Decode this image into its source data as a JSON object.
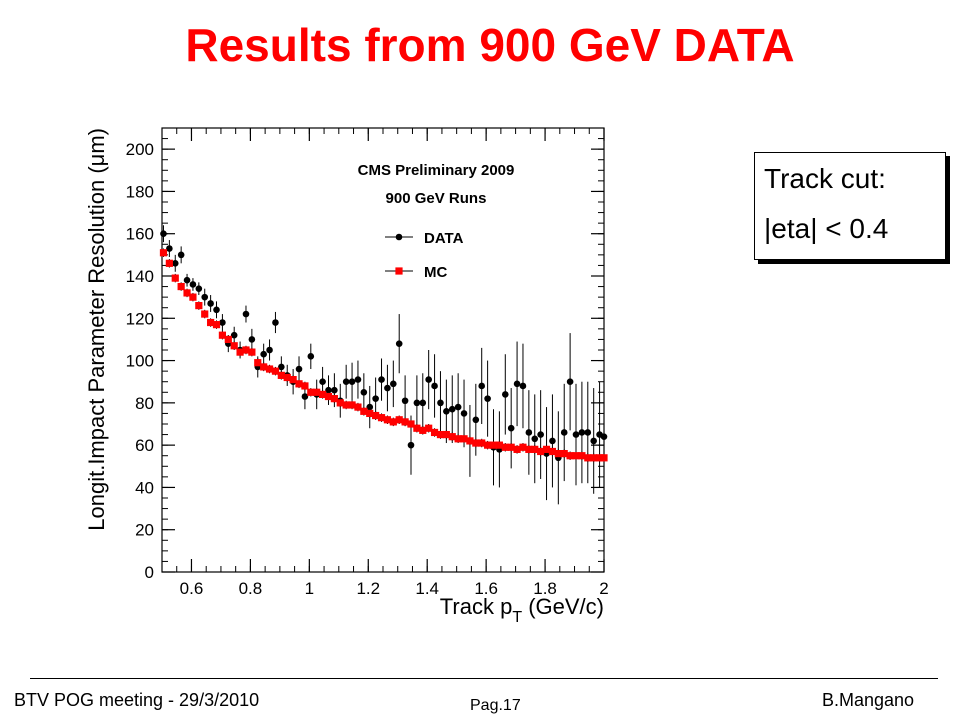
{
  "slide_title": "Results from 900 GeV DATA",
  "cut_box": {
    "line1": "Track cut:",
    "line2": "|eta| < 0.4"
  },
  "footer": {
    "left": "BTV POG meeting - 29/3/2010",
    "page": "Pag.17",
    "author": "B.Mangano"
  },
  "colors": {
    "title": "#ff0000",
    "data": "#000000",
    "mc": "#ff0000"
  },
  "chart_data": {
    "type": "scatter",
    "title_lines": [
      "CMS Preliminary 2009",
      "900 GeV Runs"
    ],
    "xlabel": "Track p",
    "xlabel_sub": "T",
    "xlabel_unit": "(GeV/c)",
    "ylabel": "Longit.Impact Parameter Resolution (μm)",
    "xlim": [
      0.5,
      2.0
    ],
    "ylim": [
      0,
      210
    ],
    "x_ticks": [
      0.6,
      0.8,
      1,
      1.2,
      1.4,
      1.6,
      1.8,
      2
    ],
    "x_tick_labels": [
      "0.6",
      "0.8",
      "1",
      "1.2",
      "1.4",
      "1.6",
      "1.8",
      "2"
    ],
    "y_ticks": [
      0,
      20,
      40,
      60,
      80,
      100,
      120,
      140,
      160,
      180,
      200
    ],
    "y_tick_labels": [
      "0",
      "20",
      "40",
      "60",
      "80",
      "100",
      "120",
      "140",
      "160",
      "180",
      "200"
    ],
    "legend_position": "top-right",
    "series": [
      {
        "name": "DATA",
        "marker": "circle",
        "x": [
          0.505,
          0.525,
          0.545,
          0.565,
          0.585,
          0.605,
          0.625,
          0.645,
          0.665,
          0.685,
          0.705,
          0.725,
          0.745,
          0.765,
          0.785,
          0.805,
          0.825,
          0.845,
          0.865,
          0.885,
          0.905,
          0.925,
          0.945,
          0.965,
          0.985,
          1.005,
          1.025,
          1.045,
          1.065,
          1.085,
          1.105,
          1.125,
          1.145,
          1.165,
          1.185,
          1.205,
          1.225,
          1.245,
          1.265,
          1.285,
          1.305,
          1.325,
          1.345,
          1.365,
          1.385,
          1.405,
          1.425,
          1.445,
          1.465,
          1.485,
          1.505,
          1.525,
          1.545,
          1.565,
          1.585,
          1.605,
          1.625,
          1.645,
          1.665,
          1.685,
          1.705,
          1.725,
          1.745,
          1.765,
          1.785,
          1.805,
          1.825,
          1.845,
          1.865,
          1.885,
          1.905,
          1.925,
          1.945,
          1.965,
          1.985,
          2.0
        ],
        "y": [
          160,
          153,
          146,
          150,
          138,
          136,
          134,
          130,
          127,
          124,
          118,
          108,
          112,
          105,
          122,
          110,
          97,
          103,
          105,
          118,
          97,
          93,
          90,
          96,
          83,
          102,
          84,
          90,
          86,
          86,
          81,
          90,
          90,
          91,
          85,
          78,
          82,
          91,
          87,
          89,
          108,
          81,
          60,
          80,
          80,
          91,
          88,
          80,
          76,
          77,
          78,
          75,
          62,
          72,
          88,
          82,
          59,
          58,
          84,
          68,
          89,
          88,
          66,
          63,
          65,
          56,
          62,
          54,
          66,
          90,
          65,
          66,
          66,
          62,
          65,
          64
        ],
        "err": [
          4,
          4,
          4,
          4,
          3,
          3,
          3,
          4,
          4,
          4,
          4,
          4,
          4,
          4,
          4,
          5,
          5,
          5,
          5,
          5,
          5,
          5,
          6,
          6,
          6,
          6,
          7,
          7,
          7,
          8,
          8,
          8,
          9,
          9,
          9,
          10,
          10,
          10,
          11,
          11,
          14,
          12,
          14,
          13,
          14,
          14,
          15,
          15,
          15,
          16,
          16,
          16,
          17,
          17,
          18,
          18,
          18,
          18,
          19,
          19,
          20,
          20,
          20,
          21,
          21,
          22,
          22,
          22,
          23,
          23,
          24,
          24,
          24,
          25,
          25,
          25
        ]
      },
      {
        "name": "MC",
        "marker": "square",
        "x": [
          0.505,
          0.525,
          0.545,
          0.565,
          0.585,
          0.605,
          0.625,
          0.645,
          0.665,
          0.685,
          0.705,
          0.725,
          0.745,
          0.765,
          0.785,
          0.805,
          0.825,
          0.845,
          0.865,
          0.885,
          0.905,
          0.925,
          0.945,
          0.965,
          0.985,
          1.005,
          1.025,
          1.045,
          1.065,
          1.085,
          1.105,
          1.125,
          1.145,
          1.165,
          1.185,
          1.205,
          1.225,
          1.245,
          1.265,
          1.285,
          1.305,
          1.325,
          1.345,
          1.365,
          1.385,
          1.405,
          1.425,
          1.445,
          1.465,
          1.485,
          1.505,
          1.525,
          1.545,
          1.565,
          1.585,
          1.605,
          1.625,
          1.645,
          1.665,
          1.685,
          1.705,
          1.725,
          1.745,
          1.765,
          1.785,
          1.805,
          1.825,
          1.845,
          1.865,
          1.885,
          1.905,
          1.925,
          1.945,
          1.965,
          1.985,
          2.0
        ],
        "y": [
          151,
          146,
          139,
          135,
          132,
          130,
          126,
          122,
          118,
          117,
          112,
          110,
          107,
          104,
          105,
          104,
          99,
          97,
          96,
          95,
          93,
          92,
          91,
          89,
          88,
          85,
          85,
          84,
          83,
          82,
          80,
          79,
          79,
          78,
          76,
          75,
          74,
          73,
          72,
          71,
          72,
          71,
          70,
          68,
          67,
          68,
          66,
          65,
          65,
          64,
          63,
          63,
          62,
          61,
          61,
          60,
          60,
          60,
          59,
          59,
          58,
          59,
          58,
          58,
          57,
          58,
          57,
          56,
          56,
          55,
          55,
          55,
          54,
          54,
          54,
          54
        ],
        "err": [
          2,
          2,
          2,
          2,
          2,
          2,
          2,
          2,
          2,
          2,
          2,
          2,
          2,
          2,
          2,
          2,
          2,
          2,
          2,
          2,
          2,
          2,
          2,
          2,
          2,
          2,
          2,
          2,
          2,
          2,
          2,
          2,
          2,
          2,
          2,
          2,
          2,
          2,
          2,
          2,
          2,
          2,
          2,
          2,
          2,
          2,
          2,
          2,
          2,
          2,
          2,
          2,
          2,
          2,
          2,
          2,
          2,
          2,
          2,
          2,
          2,
          2,
          2,
          2,
          2,
          2,
          2,
          2,
          2,
          2,
          2,
          2,
          2,
          2,
          2,
          2
        ]
      }
    ]
  }
}
